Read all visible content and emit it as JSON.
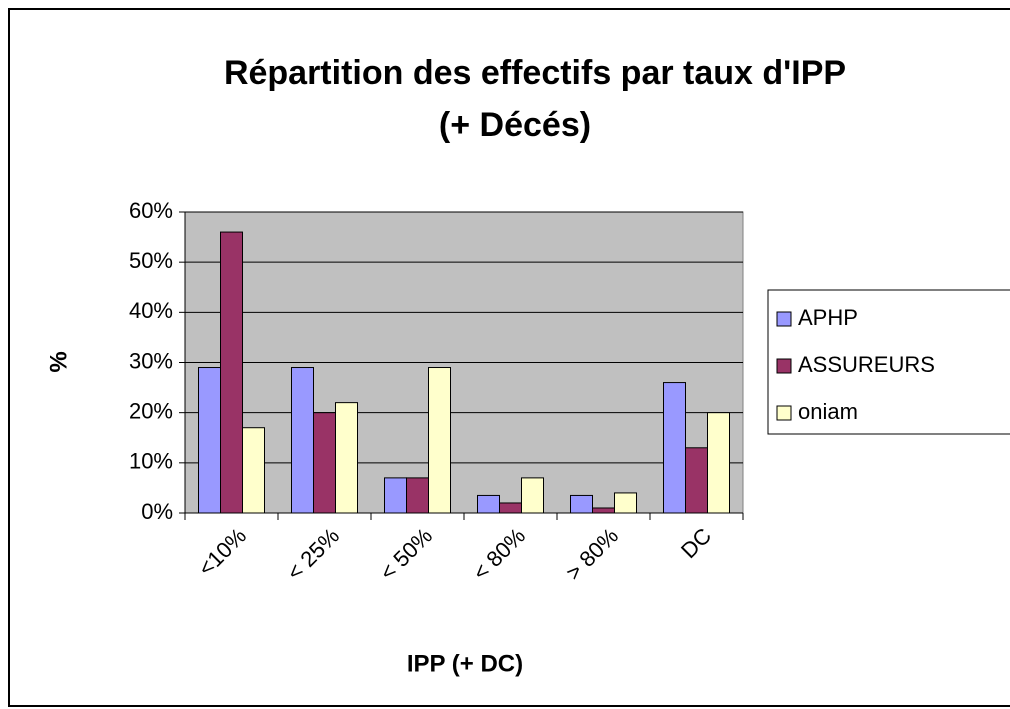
{
  "chart_data": {
    "type": "bar",
    "title": [
      "Répartition des effectifs par taux d'IPP",
      "(+ Décés)"
    ],
    "x_label": "IPP (+ DC)",
    "y_label": "%",
    "categories": [
      "<10%",
      "< 25%",
      "< 50%",
      "< 80%",
      "> 80%",
      "DC"
    ],
    "series": [
      {
        "name": "APHP",
        "color": "#9999ff",
        "values": [
          29,
          29,
          7,
          3.5,
          3.5,
          26
        ]
      },
      {
        "name": "ASSUREURS",
        "color": "#993366",
        "values": [
          56,
          20,
          7,
          2,
          1,
          13
        ]
      },
      {
        "name": "oniam",
        "color": "#ffffcc",
        "values": [
          17,
          22,
          29,
          7,
          4,
          20
        ]
      }
    ],
    "ylim": [
      0,
      60
    ],
    "yticks": [
      {
        "value": 0,
        "label": "0%"
      },
      {
        "value": 10,
        "label": "10%"
      },
      {
        "value": 20,
        "label": "20%"
      },
      {
        "value": 30,
        "label": "30%"
      },
      {
        "value": 40,
        "label": "40%"
      },
      {
        "value": 50,
        "label": "50%"
      },
      {
        "value": 60,
        "label": "60%"
      }
    ],
    "grid": true,
    "legend": "right",
    "plot_background": "#c0c0c0"
  }
}
